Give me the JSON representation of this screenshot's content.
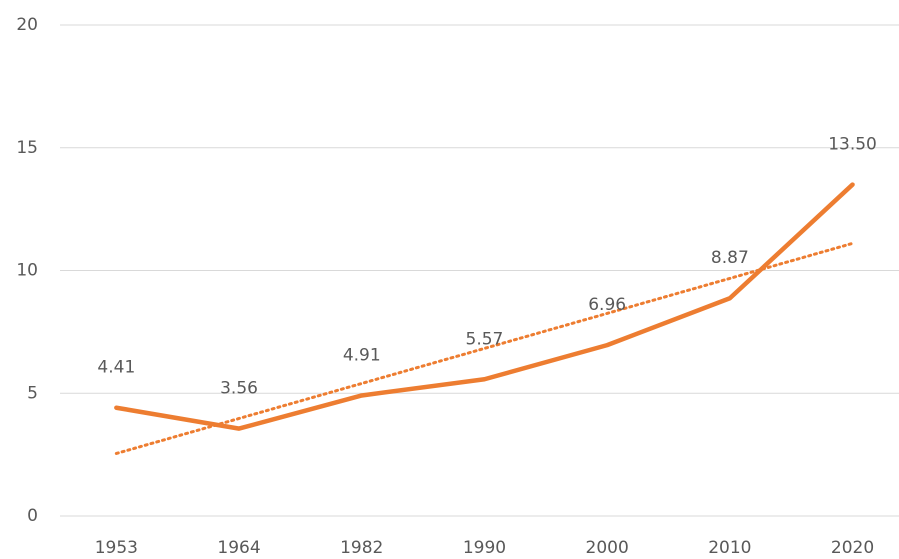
{
  "chart_data": {
    "type": "line",
    "categories": [
      "1953",
      "1964",
      "1982",
      "1990",
      "2000",
      "2010",
      "2020"
    ],
    "series": [
      {
        "color": "#ed7d31",
        "values": [
          4.41,
          3.56,
          4.91,
          5.57,
          6.96,
          8.87,
          13.5
        ],
        "value_labels": [
          "4.41",
          "3.56",
          "4.91",
          "5.57",
          "6.96",
          "8.87",
          "13.50"
        ]
      }
    ],
    "ylim": [
      0,
      20
    ],
    "yticks": [
      0,
      5,
      10,
      15,
      20
    ],
    "grid": true,
    "trendline": true
  }
}
